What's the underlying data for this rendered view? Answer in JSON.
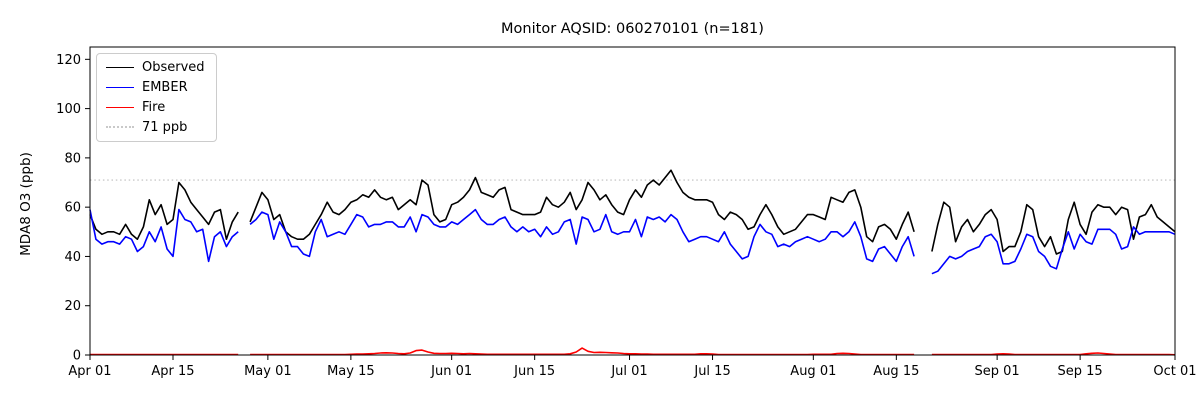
{
  "chart_data": {
    "type": "line",
    "title": "Monitor AQSID: 060270101 (n=181)",
    "xlabel": "",
    "ylabel": "MDA8 O3 (ppb)",
    "n_points": 181,
    "ylim": [
      0,
      125
    ],
    "yticks": [
      0,
      20,
      40,
      60,
      80,
      100,
      120
    ],
    "grid": false,
    "legend_position": "upper left",
    "x_start_label": "Apr 01",
    "x_end_label": "Oct 01",
    "xticks": [
      {
        "day": 0,
        "label": "Apr 01"
      },
      {
        "day": 14,
        "label": "Apr 15"
      },
      {
        "day": 30,
        "label": "May 01"
      },
      {
        "day": 44,
        "label": "May 15"
      },
      {
        "day": 61,
        "label": "Jun 01"
      },
      {
        "day": 75,
        "label": "Jun 15"
      },
      {
        "day": 91,
        "label": "Jul 01"
      },
      {
        "day": 105,
        "label": "Jul 15"
      },
      {
        "day": 122,
        "label": "Aug 01"
      },
      {
        "day": 136,
        "label": "Aug 15"
      },
      {
        "day": 153,
        "label": "Sep 01"
      },
      {
        "day": 167,
        "label": "Sep 15"
      },
      {
        "day": 183,
        "label": "Oct 01"
      }
    ],
    "threshold": {
      "value": 71,
      "label": "71 ppb",
      "color": "#c9c9c9",
      "style": "dotted"
    },
    "missing_dates": [
      "Apr 27",
      "Aug 19",
      "Aug 20"
    ],
    "series": [
      {
        "name": "Observed",
        "color": "#000000",
        "values": [
          57,
          51,
          49,
          50,
          50,
          49,
          53,
          49,
          47,
          52,
          63,
          57,
          61,
          53,
          55,
          70,
          67,
          62,
          59,
          56,
          53,
          58,
          59,
          47,
          54,
          58,
          null,
          54,
          60,
          66,
          63,
          55,
          57,
          50,
          48,
          47,
          47,
          49,
          53,
          57,
          62,
          58,
          57,
          59,
          62,
          63,
          65,
          64,
          67,
          64,
          63,
          64,
          59,
          61,
          63,
          61,
          71,
          69,
          57,
          54,
          55,
          61,
          62,
          64,
          67,
          72,
          66,
          65,
          64,
          67,
          68,
          59,
          58,
          57,
          57,
          57,
          58,
          64,
          61,
          60,
          62,
          66,
          59,
          63,
          70,
          67,
          63,
          65,
          61,
          58,
          57,
          63,
          67,
          64,
          69,
          71,
          69,
          72,
          75,
          70,
          66,
          64,
          63,
          63,
          63,
          62,
          57,
          55,
          58,
          57,
          55,
          51,
          52,
          57,
          61,
          57,
          52,
          49,
          50,
          51,
          54,
          57,
          57,
          56,
          55,
          64,
          63,
          62,
          66,
          67,
          60,
          48,
          46,
          52,
          53,
          51,
          47,
          53,
          58,
          50,
          null,
          null,
          42,
          53,
          62,
          60,
          46,
          52,
          55,
          50,
          53,
          57,
          59,
          55,
          42,
          44,
          44,
          50,
          61,
          59,
          48,
          44,
          48,
          41,
          42,
          55,
          62,
          53,
          49,
          58,
          61,
          60,
          60,
          57,
          60,
          59,
          47,
          56,
          57,
          61,
          56,
          54,
          52,
          50
        ]
      },
      {
        "name": "EMBER",
        "color": "#0000ff",
        "values": [
          59,
          47,
          45,
          46,
          46,
          45,
          48,
          47,
          42,
          44,
          50,
          46,
          52,
          43,
          40,
          59,
          55,
          54,
          50,
          51,
          38,
          48,
          50,
          44,
          48,
          50,
          null,
          53,
          55,
          58,
          57,
          47,
          54,
          50,
          44,
          44,
          41,
          40,
          50,
          55,
          48,
          49,
          50,
          49,
          53,
          57,
          56,
          52,
          53,
          53,
          54,
          54,
          52,
          52,
          56,
          50,
          57,
          56,
          53,
          52,
          52,
          54,
          53,
          55,
          57,
          59,
          55,
          53,
          53,
          55,
          56,
          52,
          50,
          52,
          50,
          51,
          48,
          52,
          49,
          50,
          54,
          55,
          45,
          56,
          55,
          50,
          51,
          57,
          50,
          49,
          50,
          50,
          55,
          48,
          56,
          55,
          56,
          54,
          57,
          55,
          50,
          46,
          47,
          48,
          48,
          47,
          46,
          50,
          45,
          42,
          39,
          40,
          48,
          53,
          50,
          49,
          44,
          45,
          44,
          46,
          47,
          48,
          47,
          46,
          47,
          50,
          50,
          48,
          50,
          54,
          48,
          39,
          38,
          43,
          44,
          41,
          38,
          44,
          48,
          40,
          null,
          null,
          33,
          34,
          37,
          40,
          39,
          40,
          42,
          43,
          44,
          48,
          49,
          46,
          37,
          37,
          38,
          43,
          49,
          48,
          42,
          40,
          36,
          35,
          43,
          50,
          43,
          49,
          46,
          45,
          51,
          51,
          51,
          49,
          43,
          44,
          52,
          49,
          50,
          50,
          50,
          50,
          50,
          49
        ]
      },
      {
        "name": "Fire",
        "color": "#ff0000",
        "values": [
          0.2,
          0.2,
          0.2,
          0.2,
          0.2,
          0.2,
          0.2,
          0.2,
          0.2,
          0.2,
          0.2,
          0.2,
          0.2,
          0.2,
          0.2,
          0.2,
          0.2,
          0.2,
          0.2,
          0.2,
          0.2,
          0.2,
          0.2,
          0.2,
          0.2,
          0.2,
          null,
          0.2,
          0.2,
          0.2,
          0.2,
          0.2,
          0.2,
          0.2,
          0.2,
          0.2,
          0.2,
          0.2,
          0.2,
          0.2,
          0.2,
          0.2,
          0.2,
          0.2,
          0.3,
          0.4,
          0.4,
          0.5,
          0.6,
          0.8,
          0.9,
          0.8,
          0.6,
          0.5,
          0.8,
          1.8,
          2.0,
          1.2,
          0.7,
          0.6,
          0.6,
          0.7,
          0.6,
          0.5,
          0.6,
          0.5,
          0.4,
          0.3,
          0.3,
          0.3,
          0.3,
          0.3,
          0.3,
          0.3,
          0.3,
          0.3,
          0.3,
          0.3,
          0.3,
          0.3,
          0.3,
          0.5,
          1.2,
          2.8,
          1.5,
          1.0,
          1.1,
          1.0,
          0.9,
          0.8,
          0.6,
          0.5,
          0.5,
          0.4,
          0.4,
          0.3,
          0.3,
          0.3,
          0.3,
          0.3,
          0.3,
          0.3,
          0.3,
          0.5,
          0.5,
          0.4,
          0.2,
          0.2,
          0.2,
          0.2,
          0.2,
          0.2,
          0.2,
          0.2,
          0.2,
          0.2,
          0.2,
          0.2,
          0.2,
          0.2,
          0.2,
          0.2,
          0.3,
          0.3,
          0.3,
          0.3,
          0.6,
          0.7,
          0.6,
          0.4,
          0.2,
          0.2,
          0.2,
          0.2,
          0.2,
          0.2,
          0.2,
          0.2,
          0.2,
          0.2,
          null,
          null,
          0.2,
          0.2,
          0.2,
          0.2,
          0.2,
          0.2,
          0.2,
          0.2,
          0.2,
          0.2,
          0.2,
          0.4,
          0.5,
          0.4,
          0.2,
          0.2,
          0.2,
          0.2,
          0.2,
          0.2,
          0.2,
          0.2,
          0.2,
          0.2,
          0.2,
          0.2,
          0.5,
          0.7,
          0.8,
          0.6,
          0.4,
          0.2,
          0.2,
          0.2,
          0.2,
          0.2,
          0.2,
          0.2,
          0.2,
          0.2,
          0.2,
          0.1
        ]
      }
    ]
  }
}
